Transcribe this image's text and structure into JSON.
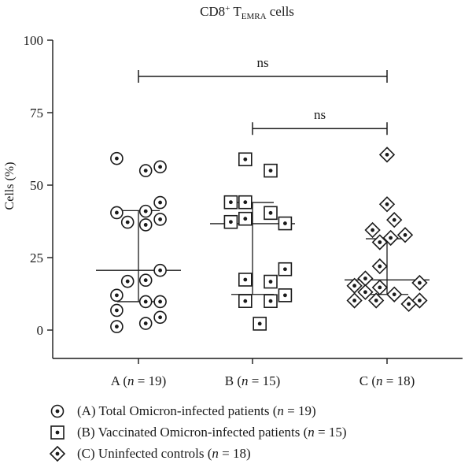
{
  "chart_data": {
    "type": "scatter",
    "title": "CD8",
    "title_sup": "+",
    "title_mid": " T",
    "title_sub": "EMRA",
    "title_end": " cells",
    "ylabel": "Cells (%)",
    "ylim": [
      0,
      100
    ],
    "yticks": [
      "0",
      "25",
      "50",
      "75",
      "100"
    ],
    "categories": [
      {
        "label": "A (",
        "n_var": "n",
        "n_text": " = 19)"
      },
      {
        "label": "B (",
        "n_var": "n",
        "n_text": " = 15)"
      },
      {
        "label": "C (",
        "n_var": "n",
        "n_text": " = 18)"
      }
    ],
    "series": [
      {
        "marker": "circle",
        "points": [
          [
            -0.3,
            59.2
          ],
          [
            -0.3,
            40.5
          ],
          [
            -0.3,
            12
          ],
          [
            -0.3,
            6.8
          ],
          [
            -0.3,
            1.2
          ],
          [
            -0.15,
            37.2
          ],
          [
            -0.15,
            16.8
          ],
          [
            0.1,
            55
          ],
          [
            0.1,
            41
          ],
          [
            0.1,
            36.3
          ],
          [
            0.1,
            17.2
          ],
          [
            0.1,
            9.8
          ],
          [
            0.1,
            2.3
          ],
          [
            0.3,
            56.3
          ],
          [
            0.3,
            44
          ],
          [
            0.3,
            38.2
          ],
          [
            0.3,
            20.6
          ],
          [
            0.3,
            9.8
          ],
          [
            0.3,
            4.4
          ]
        ],
        "median": 20.6,
        "q1": 9.8,
        "q3": 41.2
      },
      {
        "marker": "square",
        "points": [
          [
            -0.3,
            44.1
          ],
          [
            -0.3,
            37.3
          ],
          [
            -0.1,
            58.9
          ],
          [
            -0.1,
            44.1
          ],
          [
            -0.1,
            38.4
          ],
          [
            -0.1,
            17.4
          ],
          [
            -0.1,
            10
          ],
          [
            0.1,
            2.2
          ],
          [
            0.25,
            55
          ],
          [
            0.25,
            40.4
          ],
          [
            0.25,
            16.7
          ],
          [
            0.25,
            10
          ],
          [
            0.45,
            36.8
          ],
          [
            0.45,
            21
          ],
          [
            0.45,
            12
          ]
        ],
        "median": 36.7,
        "q1": 12.3,
        "q3": 44
      },
      {
        "marker": "diamond",
        "points": [
          [
            0,
            60.5
          ],
          [
            0,
            43.4
          ],
          [
            0.1,
            38
          ],
          [
            -0.2,
            34.5
          ],
          [
            0.25,
            32.8
          ],
          [
            0.05,
            31.8
          ],
          [
            -0.1,
            30.3
          ],
          [
            -0.1,
            22
          ],
          [
            -0.3,
            17.8
          ],
          [
            0.45,
            16.3
          ],
          [
            -0.45,
            15.3
          ],
          [
            -0.1,
            14.7
          ],
          [
            -0.3,
            13.1
          ],
          [
            0.1,
            12.3
          ],
          [
            -0.45,
            10.2
          ],
          [
            -0.15,
            10.2
          ],
          [
            0.45,
            10.2
          ],
          [
            0.3,
            9
          ]
        ],
        "median": 17.3,
        "q1": 12.3,
        "q3": 31.5
      }
    ],
    "significance": [
      {
        "from": 0,
        "to": 2,
        "y": 87.5,
        "label": "ns"
      },
      {
        "from": 1,
        "to": 2,
        "y": 69.5,
        "label": "ns"
      }
    ],
    "legend": [
      {
        "marker": "circle",
        "label": "(A) Total Omicron-infected patients (",
        "n_var": "n",
        "n_text": " = 19)"
      },
      {
        "marker": "square",
        "label": "(B) Vaccinated Omicron-infected patients (",
        "n_var": "n",
        "n_text": " = 15)"
      },
      {
        "marker": "diamond",
        "label": "(C) Uninfected controls (",
        "n_var": "n",
        "n_text": " = 18)"
      }
    ]
  }
}
